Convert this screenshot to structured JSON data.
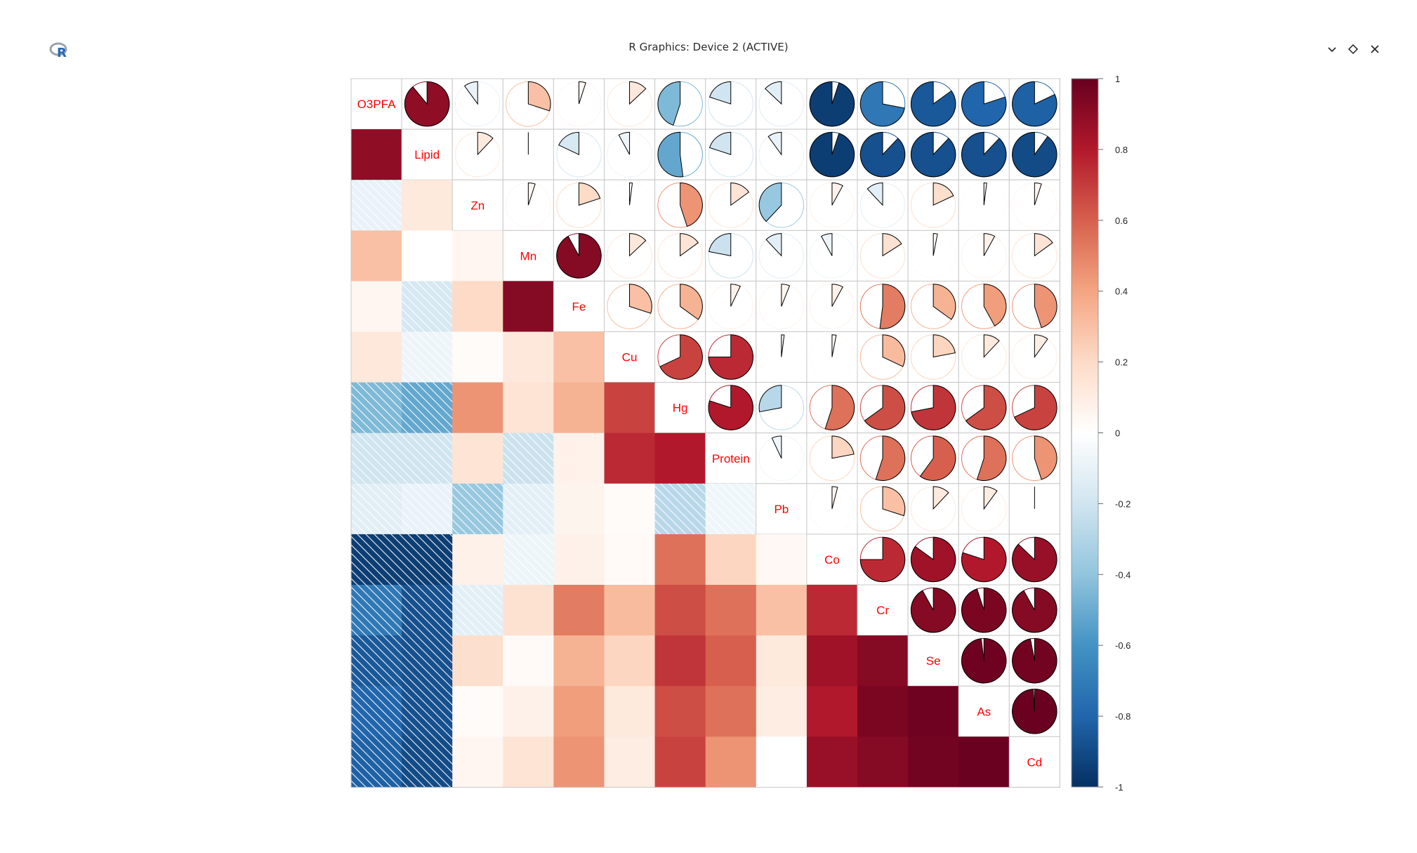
{
  "window": {
    "title": "R Graphics: Device 2 (ACTIVE)",
    "icon": "r-logo-icon",
    "controls": [
      "minimize-icon",
      "restore-icon",
      "close-icon"
    ]
  },
  "chart_data": {
    "type": "heatmap",
    "subtype": "corrplot mixed (lower: shade, upper: pie)",
    "variables": [
      "O3PFA",
      "Lipid",
      "Zn",
      "Mn",
      "Fe",
      "Cu",
      "Hg",
      "Protein",
      "Pb",
      "Co",
      "Cr",
      "Se",
      "As",
      "Cd"
    ],
    "matrix": [
      [
        1,
        0.89,
        -0.1,
        0.3,
        0.05,
        0.13,
        -0.45,
        -0.2,
        -0.13,
        -0.95,
        -0.72,
        -0.85,
        -0.8,
        -0.82
      ],
      [
        0.89,
        1,
        0.12,
        0.0,
        -0.18,
        -0.08,
        -0.52,
        -0.2,
        -0.1,
        -0.95,
        -0.88,
        -0.88,
        -0.88,
        -0.9
      ],
      [
        -0.1,
        0.12,
        1,
        0.05,
        0.2,
        0.02,
        0.45,
        0.15,
        -0.38,
        0.08,
        -0.12,
        0.18,
        0.02,
        0.05
      ],
      [
        0.3,
        0.0,
        0.05,
        1,
        0.92,
        0.13,
        0.15,
        -0.22,
        -0.12,
        -0.08,
        0.16,
        0.03,
        0.08,
        0.15
      ],
      [
        0.05,
        -0.18,
        0.2,
        0.92,
        1,
        0.3,
        0.35,
        0.07,
        0.06,
        0.08,
        0.52,
        0.35,
        0.42,
        0.45
      ],
      [
        0.13,
        -0.08,
        0.02,
        0.13,
        0.3,
        1,
        0.68,
        0.75,
        0.02,
        0.03,
        0.32,
        0.22,
        0.12,
        0.1
      ],
      [
        -0.45,
        -0.52,
        0.45,
        0.15,
        0.35,
        0.68,
        1,
        0.8,
        -0.28,
        0.55,
        0.65,
        0.72,
        0.65,
        0.68
      ],
      [
        -0.2,
        -0.2,
        0.15,
        -0.22,
        0.07,
        0.75,
        0.8,
        1,
        -0.07,
        0.22,
        0.55,
        0.6,
        0.55,
        0.45
      ],
      [
        -0.13,
        -0.1,
        -0.38,
        -0.12,
        0.06,
        0.02,
        -0.28,
        -0.07,
        1,
        0.04,
        0.3,
        0.12,
        0.1,
        0.0
      ],
      [
        -0.95,
        -0.95,
        0.08,
        -0.08,
        0.08,
        0.03,
        0.55,
        0.22,
        0.04,
        1,
        0.75,
        0.85,
        0.8,
        0.87
      ],
      [
        -0.72,
        -0.88,
        -0.12,
        0.16,
        0.52,
        0.32,
        0.65,
        0.55,
        0.3,
        0.75,
        1,
        0.92,
        0.95,
        0.92
      ],
      [
        -0.85,
        -0.88,
        0.18,
        0.03,
        0.35,
        0.22,
        0.72,
        0.6,
        0.12,
        0.85,
        0.92,
        1,
        0.98,
        0.97
      ],
      [
        -0.8,
        -0.88,
        0.02,
        0.08,
        0.42,
        0.12,
        0.65,
        0.55,
        0.1,
        0.8,
        0.95,
        0.98,
        1,
        0.99
      ],
      [
        -0.82,
        -0.9,
        0.05,
        0.15,
        0.45,
        0.1,
        0.68,
        0.45,
        0.0,
        0.87,
        0.92,
        0.97,
        0.99,
        1
      ]
    ],
    "colorbar": {
      "range": [
        -1,
        1
      ],
      "ticks": [
        "1",
        "0.8",
        "0.6",
        "0.4",
        "0.2",
        "0",
        "-0.2",
        "-0.4",
        "-0.6",
        "-0.8",
        "-1"
      ],
      "tick_values": [
        1,
        0.8,
        0.6,
        0.4,
        0.2,
        0,
        -0.2,
        -0.4,
        -0.6,
        -0.8,
        -1
      ],
      "colors": [
        "#67001F",
        "#B2182B",
        "#D6604D",
        "#F4A582",
        "#FDDBC7",
        "#FFFFFF",
        "#D1E5F0",
        "#92C5DE",
        "#4393C3",
        "#2166AC",
        "#053061"
      ]
    },
    "label_color": "#FF0000",
    "xlabel": "",
    "ylabel": ""
  }
}
